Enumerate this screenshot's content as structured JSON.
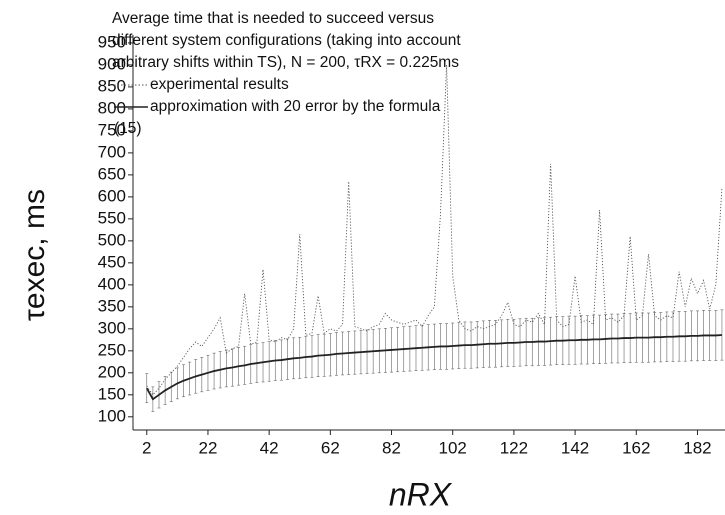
{
  "chart_data": {
    "type": "line",
    "title": "Average time that is needed to succeed versus different system configurations (taking into account arbitrary shifts within TS), N = 200, τRX = 0.225ms",
    "xlabel": "nRX",
    "ylabel": "τexec, ms",
    "x": [
      2,
      4,
      6,
      8,
      10,
      12,
      14,
      16,
      18,
      20,
      22,
      24,
      26,
      28,
      30,
      32,
      34,
      36,
      38,
      40,
      42,
      44,
      46,
      48,
      50,
      52,
      54,
      56,
      58,
      60,
      62,
      64,
      66,
      68,
      70,
      72,
      74,
      76,
      78,
      80,
      82,
      84,
      86,
      88,
      90,
      92,
      94,
      96,
      98,
      100,
      102,
      104,
      106,
      108,
      110,
      112,
      114,
      116,
      118,
      120,
      122,
      124,
      126,
      128,
      130,
      132,
      134,
      136,
      138,
      140,
      142,
      144,
      146,
      148,
      150,
      152,
      154,
      156,
      158,
      160,
      162,
      164,
      166,
      168,
      170,
      172,
      174,
      176,
      178,
      180,
      182,
      184,
      186,
      188,
      190
    ],
    "series": [
      {
        "name": "experimental results",
        "color": "#555555",
        "style": "dotted",
        "values": [
          170,
          150,
          165,
          185,
          200,
          215,
          235,
          255,
          270,
          260,
          280,
          300,
          325,
          245,
          255,
          260,
          380,
          265,
          270,
          435,
          275,
          270,
          280,
          275,
          300,
          515,
          285,
          290,
          375,
          290,
          300,
          295,
          310,
          635,
          305,
          300,
          295,
          305,
          310,
          335,
          320,
          315,
          310,
          315,
          320,
          305,
          330,
          350,
          560,
          900,
          420,
          320,
          300,
          295,
          305,
          300,
          305,
          310,
          330,
          360,
          310,
          305,
          320,
          315,
          335,
          310,
          675,
          320,
          305,
          310,
          420,
          315,
          320,
          310,
          570,
          320,
          325,
          315,
          330,
          510,
          320,
          330,
          470,
          330,
          320,
          330,
          325,
          430,
          350,
          415,
          380,
          410,
          345,
          400,
          620
        ]
      },
      {
        "name": "approximation with 20 error by the formula (15)",
        "color": "#222222",
        "style": "solid",
        "error_percent": 20,
        "values": [
          165,
          140,
          150,
          160,
          168,
          176,
          182,
          187,
          192,
          196,
          200,
          204,
          207,
          210,
          212,
          215,
          217,
          220,
          222,
          224,
          226,
          228,
          229,
          231,
          233,
          234,
          236,
          237,
          239,
          240,
          241,
          243,
          244,
          245,
          246,
          247,
          248,
          249,
          250,
          251,
          252,
          253,
          254,
          255,
          256,
          257,
          258,
          259,
          260,
          260,
          261,
          262,
          263,
          263,
          264,
          265,
          266,
          266,
          267,
          268,
          268,
          269,
          270,
          270,
          271,
          271,
          272,
          273,
          273,
          274,
          274,
          275,
          275,
          276,
          276,
          277,
          278,
          278,
          279,
          279,
          280,
          280,
          280,
          281,
          281,
          282,
          282,
          283,
          283,
          284,
          284,
          285,
          285,
          285,
          286
        ]
      }
    ],
    "xlim": [
      -2.5,
      191
    ],
    "ylim": [
      70,
      968
    ],
    "xticks": [
      2,
      22,
      42,
      62,
      82,
      102,
      122,
      142,
      162,
      182
    ],
    "yticks": [
      100,
      150,
      200,
      250,
      300,
      350,
      400,
      450,
      500,
      550,
      600,
      650,
      700,
      750,
      800,
      850,
      900,
      950
    ]
  }
}
